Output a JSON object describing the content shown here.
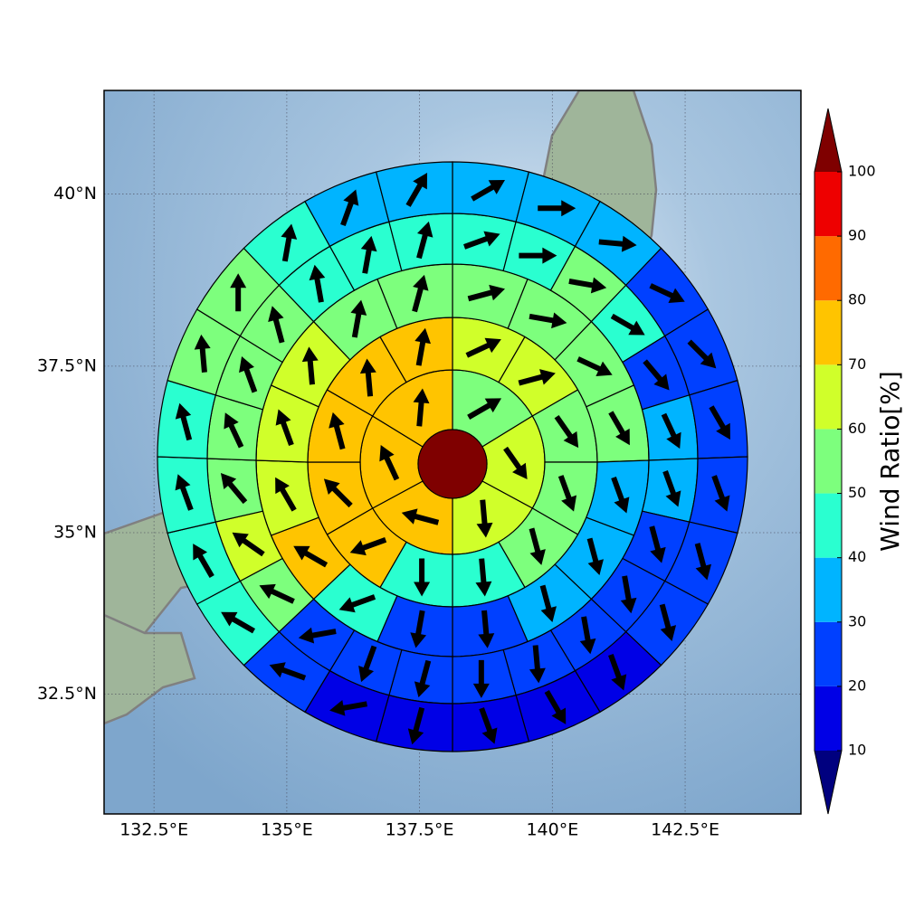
{
  "chart_data": {
    "type": "polar_grid_map",
    "xlim": [
      131.56,
      144.68
    ],
    "ylim": [
      30.6,
      41.46
    ],
    "xticks": [
      {
        "value": 132.5,
        "label": "132.5°E"
      },
      {
        "value": 135,
        "label": "135°E"
      },
      {
        "value": 137.5,
        "label": "137.5°E"
      },
      {
        "value": 140,
        "label": "140°E"
      },
      {
        "value": 142.5,
        "label": "142.5°E"
      }
    ],
    "yticks": [
      {
        "value": 32.5,
        "label": "32.5°N"
      },
      {
        "value": 35,
        "label": "35°N"
      },
      {
        "value": 37.5,
        "label": "37.5°N"
      },
      {
        "value": 40,
        "label": "40°N"
      }
    ],
    "grid": true,
    "center": {
      "value": 100
    },
    "rings": [
      {
        "values": [
          55,
          65,
          65,
          75,
          75,
          75
        ],
        "directions": [
          60,
          145,
          175,
          285,
          335,
          5
        ]
      },
      {
        "values": [
          65,
          65,
          55,
          55,
          55,
          45,
          45,
          75,
          75,
          75,
          75,
          75
        ],
        "directions": [
          65,
          75,
          145,
          160,
          165,
          175,
          180,
          250,
          315,
          345,
          355,
          10
        ]
      },
      {
        "values": [
          55,
          55,
          55,
          55,
          35,
          35,
          35,
          25,
          25,
          45,
          75,
          65,
          65,
          65,
          55,
          55
        ],
        "directions": [
          75,
          100,
          115,
          150,
          160,
          165,
          165,
          175,
          190,
          250,
          300,
          330,
          340,
          355,
          10,
          15
        ]
      },
      {
        "values": [
          45,
          45,
          55,
          45,
          25,
          35,
          35,
          25,
          25,
          25,
          25,
          25,
          25,
          25,
          25,
          55,
          65,
          55,
          55,
          55,
          55,
          45,
          45,
          45
        ],
        "directions": [
          70,
          90,
          100,
          120,
          140,
          155,
          160,
          165,
          170,
          170,
          175,
          180,
          195,
          200,
          260,
          295,
          305,
          320,
          335,
          340,
          345,
          350,
          10,
          15
        ]
      },
      {
        "values": [
          35,
          35,
          35,
          25,
          25,
          25,
          25,
          25,
          25,
          15,
          15,
          15,
          15,
          15,
          25,
          45,
          45,
          45,
          45,
          55,
          55,
          45,
          35,
          35
        ],
        "directions": [
          60,
          90,
          95,
          115,
          135,
          150,
          160,
          165,
          165,
          160,
          150,
          160,
          195,
          260,
          290,
          300,
          330,
          340,
          345,
          355,
          0,
          10,
          20,
          30
        ]
      }
    ],
    "colorbar": {
      "label": "Wind Ratio[%]",
      "levels": [
        10,
        20,
        30,
        40,
        50,
        60,
        70,
        80,
        90,
        100
      ],
      "colors": [
        "#0000e6",
        "#0040ff",
        "#00b4ff",
        "#2affd0",
        "#7dff7d",
        "#d0ff2a",
        "#ffc400",
        "#ff6a00",
        "#ee0000"
      ],
      "under_color": "#00007f",
      "over_color": "#7f0000"
    }
  }
}
